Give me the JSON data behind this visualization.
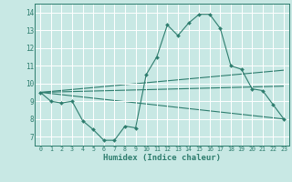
{
  "xlabel": "Humidex (Indice chaleur)",
  "xlim": [
    -0.5,
    23.5
  ],
  "ylim": [
    6.5,
    14.5
  ],
  "yticks": [
    7,
    8,
    9,
    10,
    11,
    12,
    13,
    14
  ],
  "xticks": [
    0,
    1,
    2,
    3,
    4,
    5,
    6,
    7,
    8,
    9,
    10,
    11,
    12,
    13,
    14,
    15,
    16,
    17,
    18,
    19,
    20,
    21,
    22,
    23
  ],
  "background_color": "#c8e8e4",
  "grid_color": "#ffffff",
  "line_color": "#2e7d6e",
  "main_line": {
    "x": [
      0,
      1,
      2,
      3,
      4,
      5,
      6,
      7,
      8,
      9,
      10,
      11,
      12,
      13,
      14,
      15,
      16,
      17,
      18,
      19,
      20,
      21,
      22,
      23
    ],
    "y": [
      9.5,
      9.0,
      8.9,
      9.0,
      7.9,
      7.4,
      6.8,
      6.8,
      7.6,
      7.5,
      10.5,
      11.5,
      13.3,
      12.7,
      13.4,
      13.9,
      13.9,
      13.1,
      11.0,
      10.8,
      9.7,
      9.6,
      8.8,
      8.0
    ]
  },
  "straight_lines": [
    {
      "x": [
        0,
        23
      ],
      "y": [
        9.5,
        8.0
      ]
    },
    {
      "x": [
        0,
        23
      ],
      "y": [
        9.5,
        10.75
      ]
    },
    {
      "x": [
        0,
        23
      ],
      "y": [
        9.5,
        9.85
      ]
    }
  ]
}
